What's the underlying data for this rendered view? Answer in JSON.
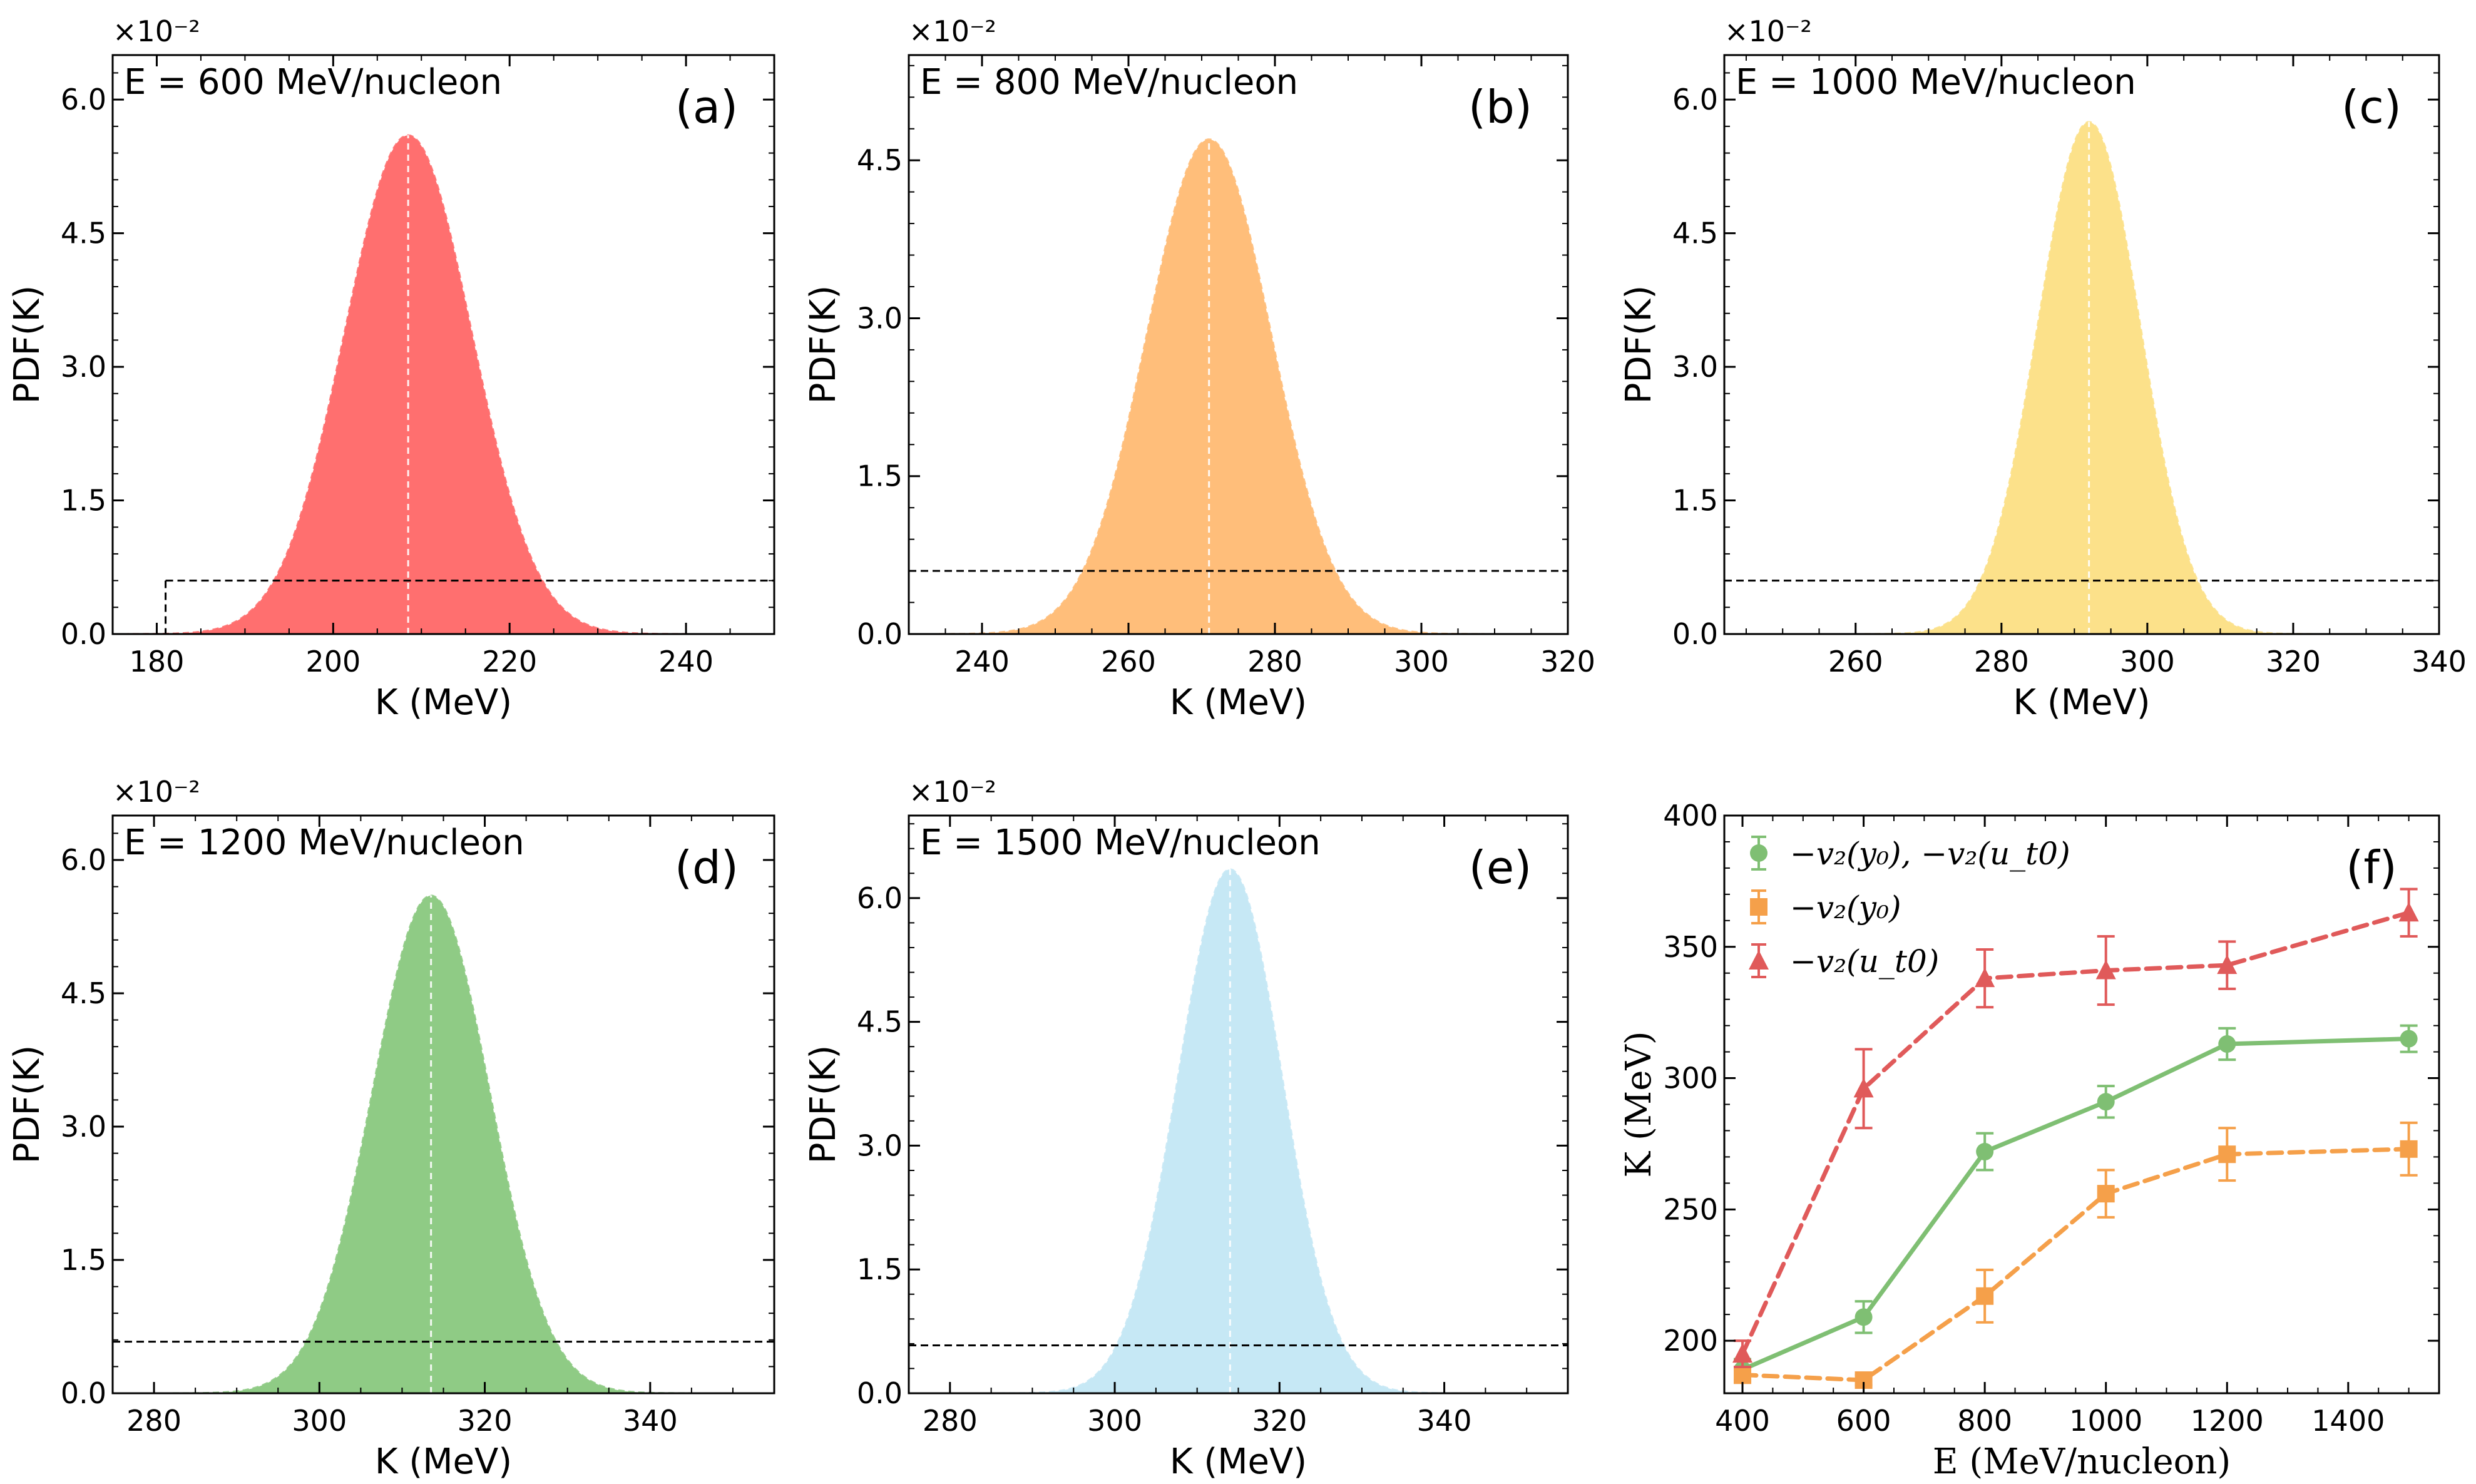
{
  "chart_data": [
    {
      "panel": "(a)",
      "type": "area",
      "annotation": "E = 600 MeV/nucleon",
      "xlabel": "K (MeV)",
      "ylabel": "PDF(K)",
      "y_multiplier": "×10⁻²",
      "xlim": [
        175,
        250
      ],
      "ylim": [
        0,
        6.5
      ],
      "xticks": [
        180,
        200,
        220,
        240
      ],
      "yticks": [
        0.0,
        1.5,
        3.0,
        4.5,
        6.0
      ],
      "peak": {
        "x": 208.5,
        "y": 5.6
      },
      "sigma": 7.2,
      "threshold": {
        "y": 0.6,
        "from_x": 181
      },
      "color": "#ff6f6f"
    },
    {
      "panel": "(b)",
      "type": "area",
      "annotation": "E = 800 MeV/nucleon",
      "xlabel": "K (MeV)",
      "ylabel": "PDF(K)",
      "y_multiplier": "×10⁻²",
      "xlim": [
        230,
        320
      ],
      "ylim": [
        0,
        5.5
      ],
      "xticks": [
        240,
        260,
        280,
        300,
        320
      ],
      "yticks": [
        0.0,
        1.5,
        3.0,
        4.5
      ],
      "peak": {
        "x": 271,
        "y": 4.7
      },
      "sigma": 8.5,
      "threshold": {
        "y": 0.6
      },
      "color": "#ffbe7a"
    },
    {
      "panel": "(c)",
      "type": "area",
      "annotation": "E = 1000 MeV/nucleon",
      "xlabel": "K (MeV)",
      "ylabel": "PDF(K)",
      "y_multiplier": "×10⁻²",
      "xlim": [
        242,
        340
      ],
      "ylim": [
        0,
        6.5
      ],
      "xticks": [
        260,
        280,
        300,
        320,
        340
      ],
      "yticks": [
        0.0,
        1.5,
        3.0,
        4.5,
        6.0
      ],
      "peak": {
        "x": 292,
        "y": 5.75
      },
      "sigma": 7.0,
      "threshold": {
        "y": 0.6
      },
      "color": "#fce18a"
    },
    {
      "panel": "(d)",
      "type": "area",
      "annotation": "E = 1200 MeV/nucleon",
      "xlabel": "K (MeV)",
      "ylabel": "PDF(K)",
      "y_multiplier": "×10⁻²",
      "xlim": [
        275,
        355
      ],
      "ylim": [
        0,
        6.5
      ],
      "xticks": [
        280,
        300,
        320,
        340
      ],
      "yticks": [
        0.0,
        1.5,
        3.0,
        4.5,
        6.0
      ],
      "peak": {
        "x": 313.5,
        "y": 5.6
      },
      "sigma": 7.1,
      "threshold": {
        "y": 0.58
      },
      "color": "#8fcb85"
    },
    {
      "panel": "(e)",
      "type": "area",
      "annotation": "E = 1500 MeV/nucleon",
      "xlabel": "K (MeV)",
      "ylabel": "PDF(K)",
      "y_multiplier": "×10⁻²",
      "xlim": [
        275,
        355
      ],
      "ylim": [
        0,
        7.0
      ],
      "xticks": [
        280,
        300,
        320,
        340
      ],
      "yticks": [
        0.0,
        1.5,
        3.0,
        4.5,
        6.0
      ],
      "peak": {
        "x": 314,
        "y": 6.35
      },
      "sigma": 6.3,
      "threshold": {
        "y": 0.58
      },
      "color": "#c6e8f5"
    },
    {
      "panel": "(f)",
      "type": "line",
      "xlabel": "E (MeV/nucleon)",
      "ylabel": "K (MeV)",
      "xlim": [
        370,
        1550
      ],
      "ylim": [
        180,
        400
      ],
      "xticks": [
        400,
        600,
        800,
        1000,
        1200,
        1400
      ],
      "yticks": [
        200,
        250,
        300,
        350,
        400
      ],
      "x": [
        400,
        600,
        800,
        1000,
        1200,
        1500
      ],
      "series": [
        {
          "name": "−v₂(y₀), −v₂(u_t0)",
          "marker": "circle",
          "color": "#7fbf73",
          "dash": false,
          "values": [
            189,
            209,
            272,
            291,
            313,
            315
          ],
          "errors": [
            4,
            6,
            7,
            6,
            6,
            5
          ]
        },
        {
          "name": "−v₂(y₀)",
          "marker": "square",
          "color": "#f5a04a",
          "dash": true,
          "values": [
            187,
            185,
            217,
            256,
            271,
            273
          ],
          "errors": [
            3,
            2,
            10,
            9,
            10,
            10
          ]
        },
        {
          "name": "−v₂(u_t0)",
          "marker": "triangle",
          "color": "#e05a5a",
          "dash": true,
          "values": [
            195,
            296,
            338,
            341,
            343,
            363
          ],
          "errors": [
            5,
            15,
            11,
            13,
            9,
            9
          ]
        }
      ]
    }
  ]
}
